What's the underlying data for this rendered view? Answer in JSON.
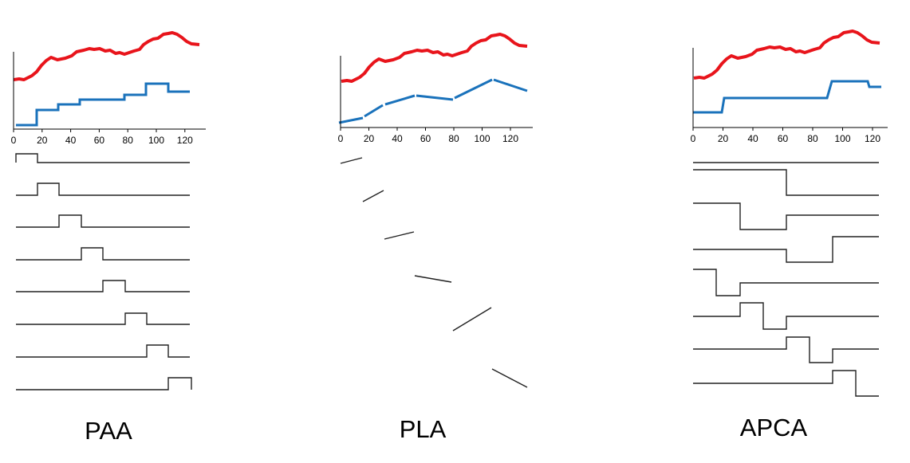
{
  "panels": [
    {
      "label": "PAA",
      "xticks": [
        0,
        20,
        40,
        60,
        80,
        100,
        120
      ]
    },
    {
      "label": "PLA",
      "xticks": [
        0,
        20,
        40,
        60,
        80,
        100,
        120
      ]
    },
    {
      "label": "APCA",
      "xticks": [
        0,
        20,
        40,
        60,
        80,
        100,
        120
      ]
    }
  ]
}
